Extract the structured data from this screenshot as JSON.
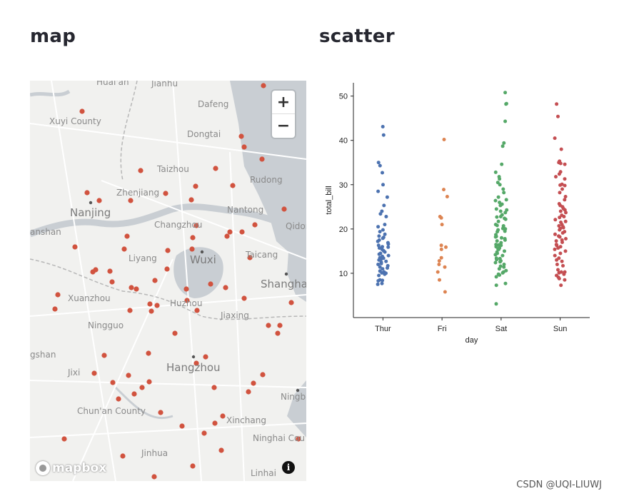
{
  "map_section": {
    "title": "map",
    "zoom_in_label": "+",
    "zoom_out_label": "−",
    "logo_text": "mapbox",
    "info_label": "i",
    "place_labels": [
      {
        "name": "Huai'an",
        "size": "small"
      },
      {
        "name": "Jianhu",
        "size": "small"
      },
      {
        "name": "Xuyi County",
        "size": "small"
      },
      {
        "name": "Dafeng",
        "size": "small"
      },
      {
        "name": "Dongtai",
        "size": "small"
      },
      {
        "name": "Taizhou",
        "size": "small"
      },
      {
        "name": "Rudong",
        "size": "small"
      },
      {
        "name": "Zhenjiang",
        "size": "small"
      },
      {
        "name": "Nanjing",
        "size": "big"
      },
      {
        "name": "Nantong",
        "size": "small"
      },
      {
        "name": "anshan",
        "size": "small"
      },
      {
        "name": "Changzhou",
        "size": "small"
      },
      {
        "name": "Qidon",
        "size": "small"
      },
      {
        "name": "Liyang",
        "size": "small"
      },
      {
        "name": "Wuxi",
        "size": "big"
      },
      {
        "name": "Taicang",
        "size": "small"
      },
      {
        "name": "Shangha",
        "size": "big"
      },
      {
        "name": "Xuanzhou",
        "size": "small"
      },
      {
        "name": "Huzhou",
        "size": "small"
      },
      {
        "name": "Jiaxing",
        "size": "small"
      },
      {
        "name": "Ningguo",
        "size": "small"
      },
      {
        "name": "gshan",
        "size": "small"
      },
      {
        "name": "Hangzhou",
        "size": "big"
      },
      {
        "name": "Jixi",
        "size": "small"
      },
      {
        "name": "Ningb",
        "size": "small"
      },
      {
        "name": "Chun'an County",
        "size": "small"
      },
      {
        "name": "Xinchang",
        "size": "small"
      },
      {
        "name": "Ninghai Cou",
        "size": "small"
      },
      {
        "name": "Jinhua",
        "size": "small"
      },
      {
        "name": "Linhai",
        "size": "small"
      }
    ],
    "colors": {
      "marker": "#d1533f",
      "water": "#c9ced3",
      "land": "#f1f1ef",
      "road": "#ffffff",
      "border": "#b7b7b7"
    }
  },
  "scatter_section": {
    "title": "scatter",
    "watermark": "CSDN @UQI-LIUWJ"
  },
  "chart_data": {
    "type": "scatter",
    "xlabel": "day",
    "ylabel": "total_bill",
    "categories": [
      "Thur",
      "Fri",
      "Sat",
      "Sun"
    ],
    "ylim": [
      0,
      53
    ],
    "yticks": [
      10,
      20,
      30,
      40,
      50
    ],
    "series": [
      {
        "name": "Thur",
        "color": "#4c72b0",
        "values": [
          43.1,
          41.2,
          35,
          34.3,
          32.7,
          30,
          28.5,
          27.2,
          25.3,
          24,
          23.4,
          22.8,
          21,
          20.5,
          19.8,
          19.4,
          18.8,
          18.4,
          18.1,
          17.9,
          17.5,
          17.2,
          16.9,
          16.6,
          16.3,
          16,
          15.9,
          15.7,
          15.4,
          15.1,
          14.8,
          14.5,
          14.3,
          14,
          13.8,
          13.5,
          13.4,
          13.2,
          13,
          12.7,
          12.5,
          12.2,
          12,
          11.7,
          11.4,
          11.2,
          11,
          10.5,
          10.3,
          10.1,
          10,
          9.8,
          9.5,
          8.5,
          8.4,
          8.3,
          7.5,
          7.7
        ]
      },
      {
        "name": "Fri",
        "color": "#dd8452",
        "values": [
          40.2,
          28.9,
          27.3,
          22.8,
          22.5,
          21,
          16.3,
          15.9,
          15.4,
          13.5,
          12.8,
          12,
          11.4,
          10.3,
          8.5,
          5.8
        ]
      },
      {
        "name": "Sat",
        "color": "#55a868",
        "values": [
          50.8,
          48.3,
          48.2,
          44.3,
          39.4,
          38.7,
          34.6,
          32.8,
          31.8,
          31.3,
          30.5,
          30,
          29,
          28.2,
          27.2,
          26.6,
          26.4,
          26,
          25.6,
          25.3,
          24.5,
          24.3,
          24,
          23.7,
          23.2,
          22.8,
          22.7,
          22.4,
          22.2,
          21.7,
          21,
          20.8,
          20.7,
          20.3,
          20.1,
          20,
          19.8,
          19.5,
          19.4,
          18.7,
          18.3,
          18.2,
          18,
          17.8,
          17.5,
          17.3,
          16.9,
          16.5,
          16.4,
          16.3,
          16,
          15.7,
          15.5,
          15.4,
          15,
          14.8,
          14.5,
          14.2,
          14,
          13.4,
          13.3,
          13.1,
          12.8,
          12.6,
          12.4,
          12,
          11.6,
          11.4,
          11,
          10.6,
          10.3,
          10.1,
          9.8,
          9.6,
          9.2,
          7.7,
          7.3,
          3.1
        ]
      },
      {
        "name": "Sun",
        "color": "#c44e52",
        "values": [
          48.2,
          45.4,
          40.5,
          38,
          35.3,
          35,
          34.8,
          34.6,
          32.9,
          32.4,
          31.8,
          31.3,
          30.1,
          29.9,
          29.8,
          29,
          28.2,
          27.3,
          26.6,
          25.7,
          25.3,
          25,
          24.6,
          24.3,
          24,
          23.7,
          23.1,
          22.8,
          22.6,
          22.1,
          21.7,
          21.5,
          21,
          20.7,
          20.5,
          20.3,
          20.1,
          19.8,
          19.4,
          19.1,
          18.8,
          18.4,
          18.2,
          17.8,
          17.5,
          17.3,
          17,
          16.5,
          16.3,
          16,
          15.7,
          15.4,
          15,
          14.5,
          14,
          13.4,
          13,
          12.7,
          12,
          11.7,
          10.8,
          10.3,
          10.3,
          10.1,
          9.8,
          9.5,
          9.1,
          8.8,
          8.5,
          7.3
        ]
      }
    ]
  }
}
